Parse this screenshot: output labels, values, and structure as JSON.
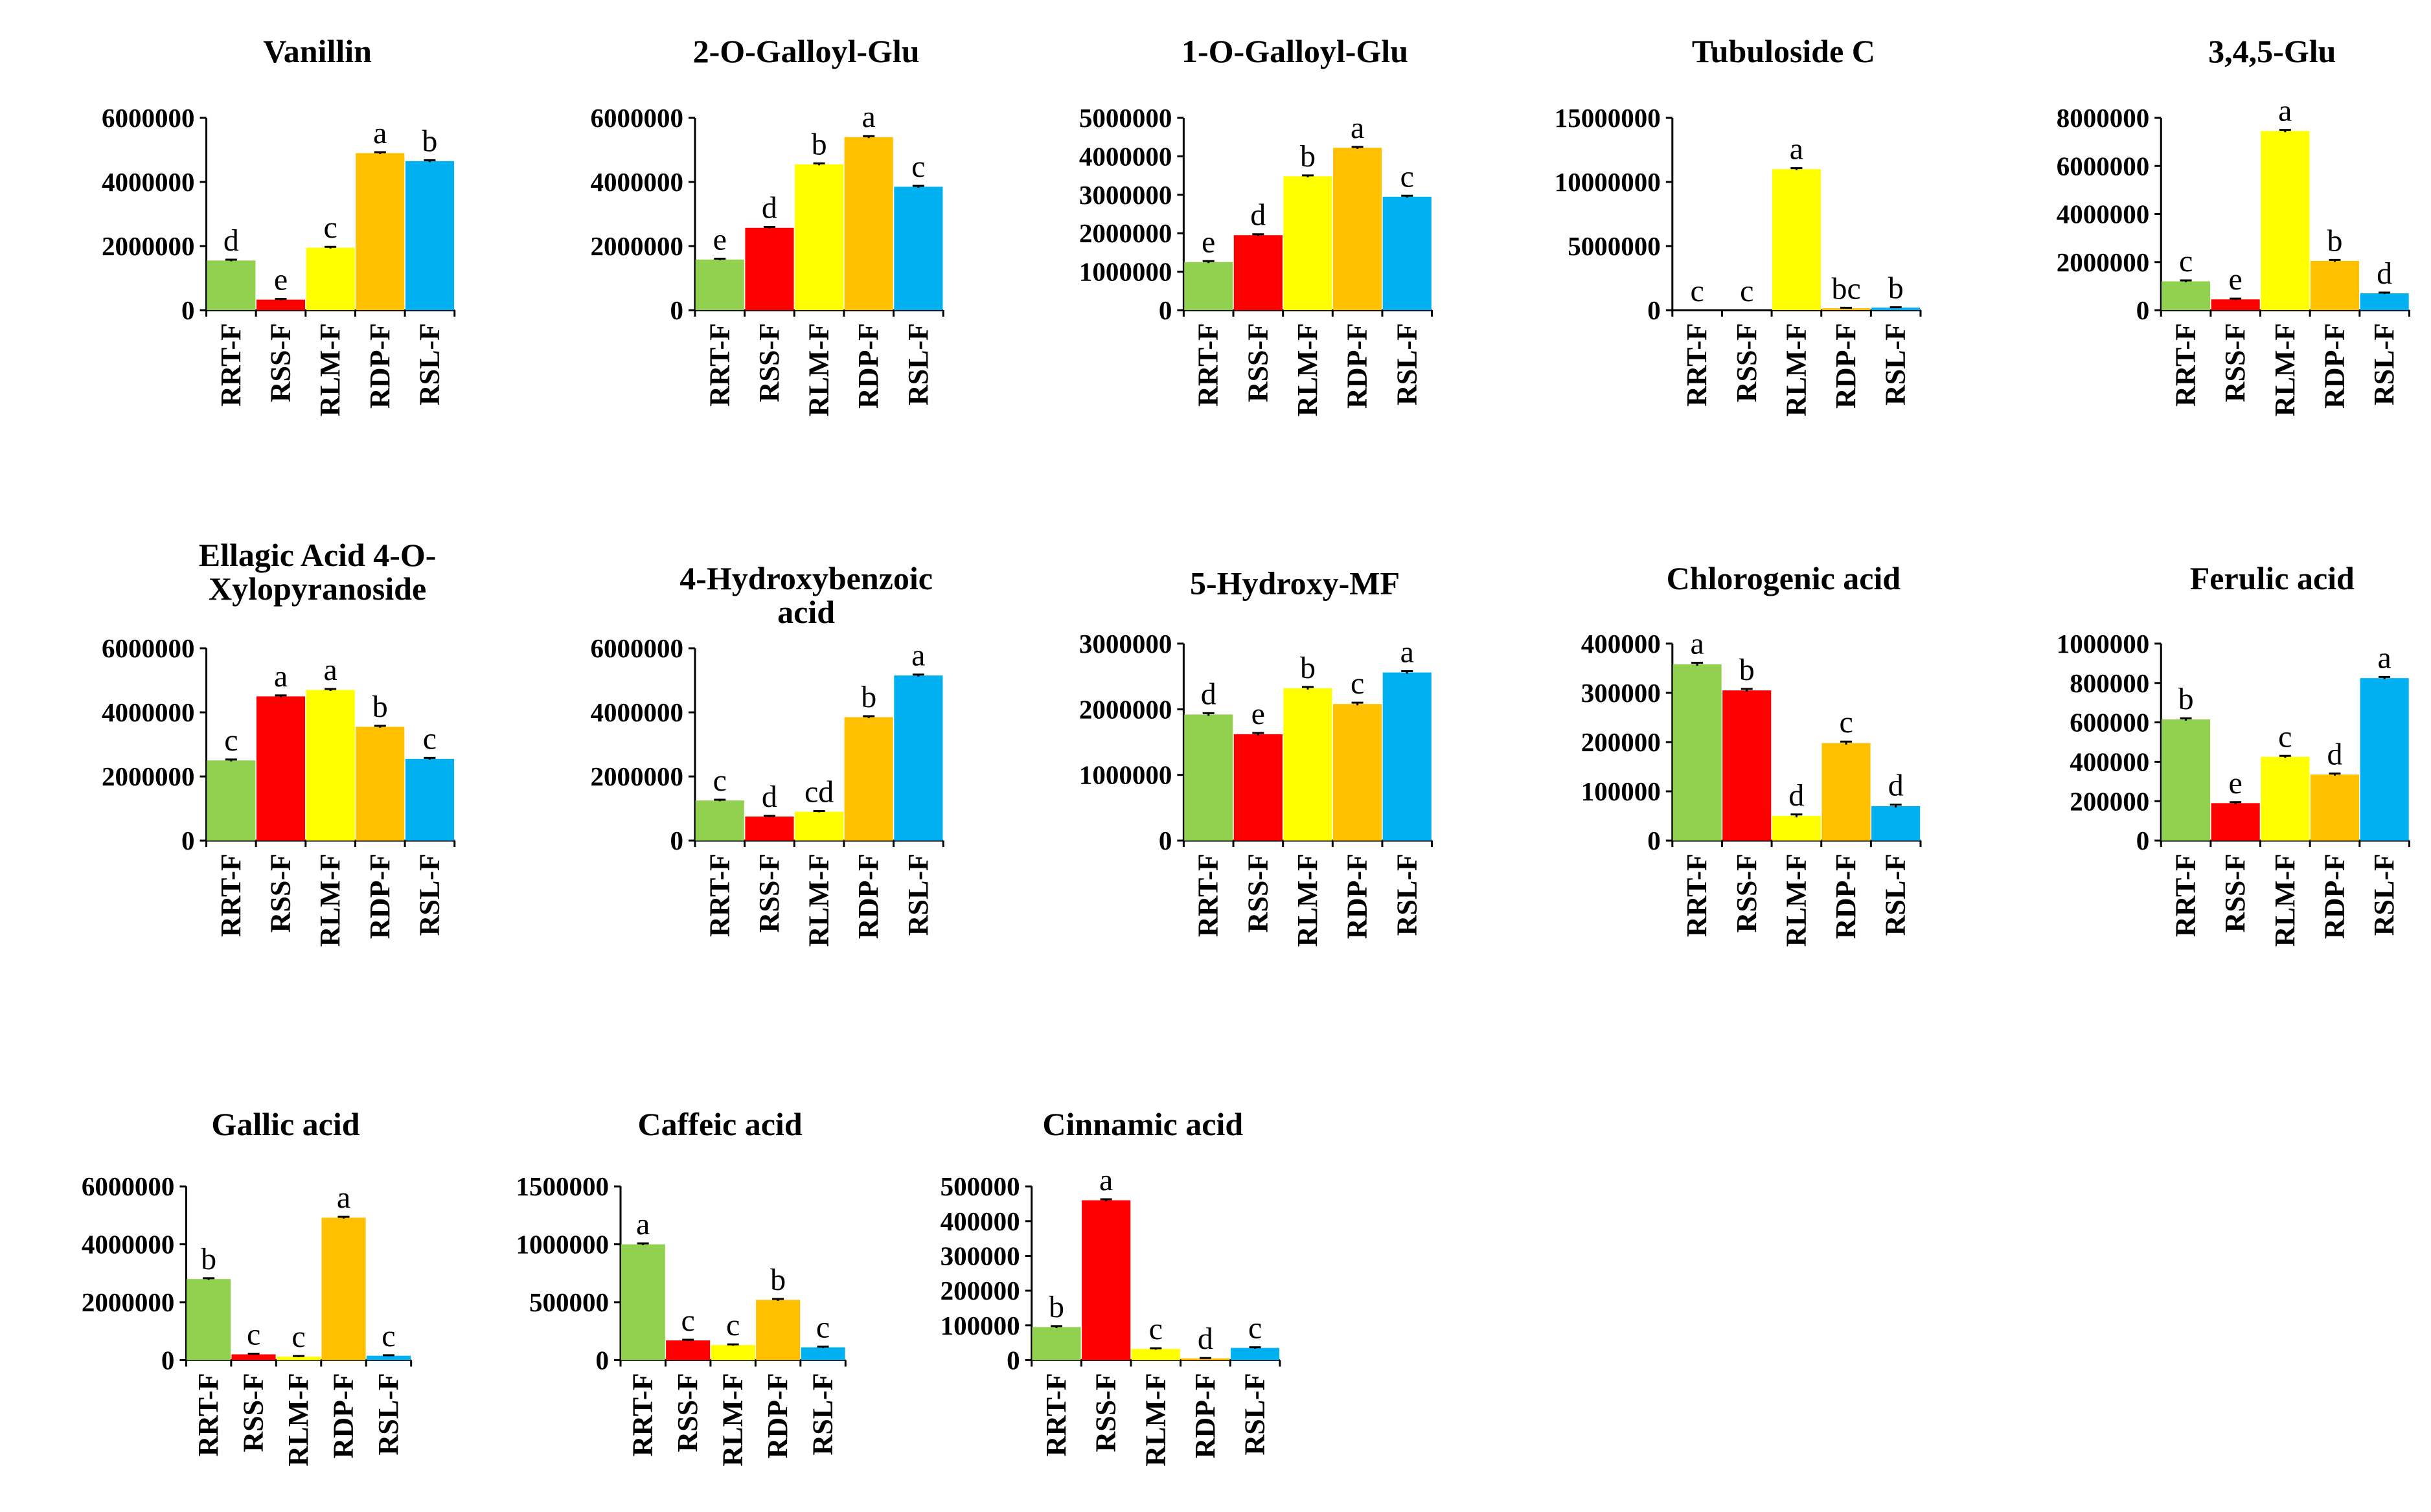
{
  "colors": {
    "RRT-F": "#92d050",
    "RSS-F": "#ff0000",
    "RLM-F": "#ffff00",
    "RDP-F": "#ffc000",
    "RSL-F": "#00b0f0",
    "axis": "#000000"
  },
  "chart_data": [
    {
      "type": "bar",
      "title": [
        "Vanillin"
      ],
      "categories": [
        "RRT-F",
        "RSS-F",
        "RLM-F",
        "RDP-F",
        "RSL-F"
      ],
      "values": [
        1550000,
        330000,
        1950000,
        4900000,
        4650000
      ],
      "errors": [
        25000,
        20000,
        25000,
        30000,
        30000
      ],
      "letters": [
        "d",
        "e",
        "c",
        "a",
        "b"
      ],
      "ylim": [
        0,
        6000000
      ],
      "yticks": [
        "0",
        "2000000",
        "4000000",
        "6000000"
      ]
    },
    {
      "type": "bar",
      "title": [
        "2-O-Galloyl-Glu"
      ],
      "categories": [
        "RRT-F",
        "RSS-F",
        "RLM-F",
        "RDP-F",
        "RSL-F"
      ],
      "values": [
        1580000,
        2570000,
        4550000,
        5400000,
        3850000
      ],
      "errors": [
        25000,
        25000,
        30000,
        30000,
        30000
      ],
      "letters": [
        "e",
        "d",
        "b",
        "a",
        "c"
      ],
      "ylim": [
        0,
        6000000
      ],
      "yticks": [
        "0",
        "2000000",
        "4000000",
        "6000000"
      ]
    },
    {
      "type": "bar",
      "title": [
        "1-O-Galloyl-Glu"
      ],
      "categories": [
        "RRT-F",
        "RSS-F",
        "RLM-F",
        "RDP-F",
        "RSL-F"
      ],
      "values": [
        1250000,
        1950000,
        3480000,
        4220000,
        2950000
      ],
      "errors": [
        25000,
        25000,
        25000,
        25000,
        25000
      ],
      "letters": [
        "e",
        "d",
        "b",
        "a",
        "c"
      ],
      "ylim": [
        0,
        5000000
      ],
      "yticks": [
        "0",
        "1000000",
        "2000000",
        "3000000",
        "4000000",
        "5000000"
      ]
    },
    {
      "type": "bar",
      "title": [
        "Tubuloside C"
      ],
      "categories": [
        "RRT-F",
        "RSS-F",
        "RLM-F",
        "RDP-F",
        "RSL-F"
      ],
      "values": [
        0,
        0,
        11000000,
        150000,
        200000
      ],
      "errors": [
        0,
        0,
        80000,
        30000,
        30000
      ],
      "letters": [
        "c",
        "c",
        "a",
        "bc",
        "b"
      ],
      "ylim": [
        0,
        15000000
      ],
      "yticks": [
        "0",
        "5000000",
        "10000000",
        "15000000"
      ]
    },
    {
      "type": "bar",
      "title": [
        "3,4,5-Glu"
      ],
      "categories": [
        "RRT-F",
        "RSS-F",
        "RLM-F",
        "RDP-F",
        "RSL-F"
      ],
      "values": [
        1200000,
        450000,
        7450000,
        2050000,
        700000
      ],
      "errors": [
        40000,
        30000,
        50000,
        40000,
        30000
      ],
      "letters": [
        "c",
        "e",
        "a",
        "b",
        "d"
      ],
      "ylim": [
        0,
        8000000
      ],
      "yticks": [
        "0",
        "2000000",
        "4000000",
        "6000000",
        "8000000"
      ]
    },
    {
      "type": "bar",
      "title": [
        "Ellagic Acid 4-O-",
        "Xylopyranoside"
      ],
      "categories": [
        "RRT-F",
        "RSS-F",
        "RLM-F",
        "RDP-F",
        "RSL-F"
      ],
      "values": [
        2500000,
        4500000,
        4700000,
        3550000,
        2550000
      ],
      "errors": [
        30000,
        30000,
        30000,
        30000,
        30000
      ],
      "letters": [
        "c",
        "a",
        "a",
        "b",
        "c"
      ],
      "ylim": [
        0,
        6000000
      ],
      "yticks": [
        "0",
        "2000000",
        "4000000",
        "6000000"
      ]
    },
    {
      "type": "bar",
      "title": [
        "4-Hydroxybenzoic",
        "acid"
      ],
      "categories": [
        "RRT-F",
        "RSS-F",
        "RLM-F",
        "RDP-F",
        "RSL-F"
      ],
      "values": [
        1250000,
        750000,
        900000,
        3850000,
        5150000
      ],
      "errors": [
        25000,
        20000,
        20000,
        30000,
        30000
      ],
      "letters": [
        "c",
        "d",
        "cd",
        "b",
        "a"
      ],
      "ylim": [
        0,
        6000000
      ],
      "yticks": [
        "0",
        "2000000",
        "4000000",
        "6000000"
      ]
    },
    {
      "type": "bar",
      "title": [
        "5-Hydroxy-MF"
      ],
      "categories": [
        "RRT-F",
        "RSS-F",
        "RLM-F",
        "RDP-F",
        "RSL-F"
      ],
      "values": [
        1920000,
        1620000,
        2320000,
        2080000,
        2560000
      ],
      "errors": [
        20000,
        20000,
        20000,
        20000,
        20000
      ],
      "letters": [
        "d",
        "e",
        "b",
        "c",
        "a"
      ],
      "ylim": [
        0,
        3000000
      ],
      "yticks": [
        "0",
        "1000000",
        "2000000",
        "3000000"
      ]
    },
    {
      "type": "bar",
      "title": [
        "Chlorogenic acid"
      ],
      "categories": [
        "RRT-F",
        "RSS-F",
        "RLM-F",
        "RDP-F",
        "RSL-F"
      ],
      "values": [
        358000,
        305000,
        50000,
        198000,
        70000
      ],
      "errors": [
        3000,
        3000,
        3000,
        3000,
        3000
      ],
      "letters": [
        "a",
        "b",
        "d",
        "c",
        "d"
      ],
      "ylim": [
        0,
        400000
      ],
      "yticks": [
        "0",
        "100000",
        "200000",
        "300000",
        "400000"
      ]
    },
    {
      "type": "bar",
      "title": [
        "Ferulic acid"
      ],
      "categories": [
        "RRT-F",
        "RSS-F",
        "RLM-F",
        "RDP-F",
        "RSL-F"
      ],
      "values": [
        615000,
        190000,
        425000,
        335000,
        825000
      ],
      "errors": [
        6000,
        5000,
        5000,
        5000,
        6000
      ],
      "letters": [
        "b",
        "e",
        "c",
        "d",
        "a"
      ],
      "ylim": [
        0,
        1000000
      ],
      "yticks": [
        "0",
        "200000",
        "400000",
        "600000",
        "800000",
        "1000000"
      ]
    },
    {
      "type": "bar",
      "title": [
        "Gallic acid"
      ],
      "categories": [
        "RRT-F",
        "RSS-F",
        "RLM-F",
        "RDP-F",
        "RSL-F"
      ],
      "values": [
        2800000,
        200000,
        120000,
        4920000,
        150000
      ],
      "errors": [
        30000,
        20000,
        20000,
        30000,
        20000
      ],
      "letters": [
        "b",
        "c",
        "c",
        "a",
        "c"
      ],
      "ylim": [
        0,
        6000000
      ],
      "yticks": [
        "0",
        "2000000",
        "4000000",
        "6000000"
      ]
    },
    {
      "type": "bar",
      "title": [
        "Caffeic acid"
      ],
      "categories": [
        "RRT-F",
        "RSS-F",
        "RLM-F",
        "RDP-F",
        "RSL-F"
      ],
      "values": [
        1000000,
        170000,
        130000,
        520000,
        110000
      ],
      "errors": [
        8000,
        6000,
        6000,
        8000,
        6000
      ],
      "letters": [
        "a",
        "c",
        "c",
        "b",
        "c"
      ],
      "ylim": [
        0,
        1500000
      ],
      "yticks": [
        "0",
        "500000",
        "1000000",
        "1500000"
      ]
    },
    {
      "type": "bar",
      "title": [
        "Cinnamic acid"
      ],
      "categories": [
        "RRT-F",
        "RSS-F",
        "RLM-F",
        "RDP-F",
        "RSL-F"
      ],
      "values": [
        95000,
        460000,
        32000,
        5000,
        35000
      ],
      "errors": [
        3000,
        3000,
        2000,
        1000,
        2000
      ],
      "letters": [
        "b",
        "a",
        "c",
        "d",
        "c"
      ],
      "ylim": [
        0,
        500000
      ],
      "yticks": [
        "0",
        "100000",
        "200000",
        "300000",
        "400000",
        "500000"
      ]
    }
  ]
}
